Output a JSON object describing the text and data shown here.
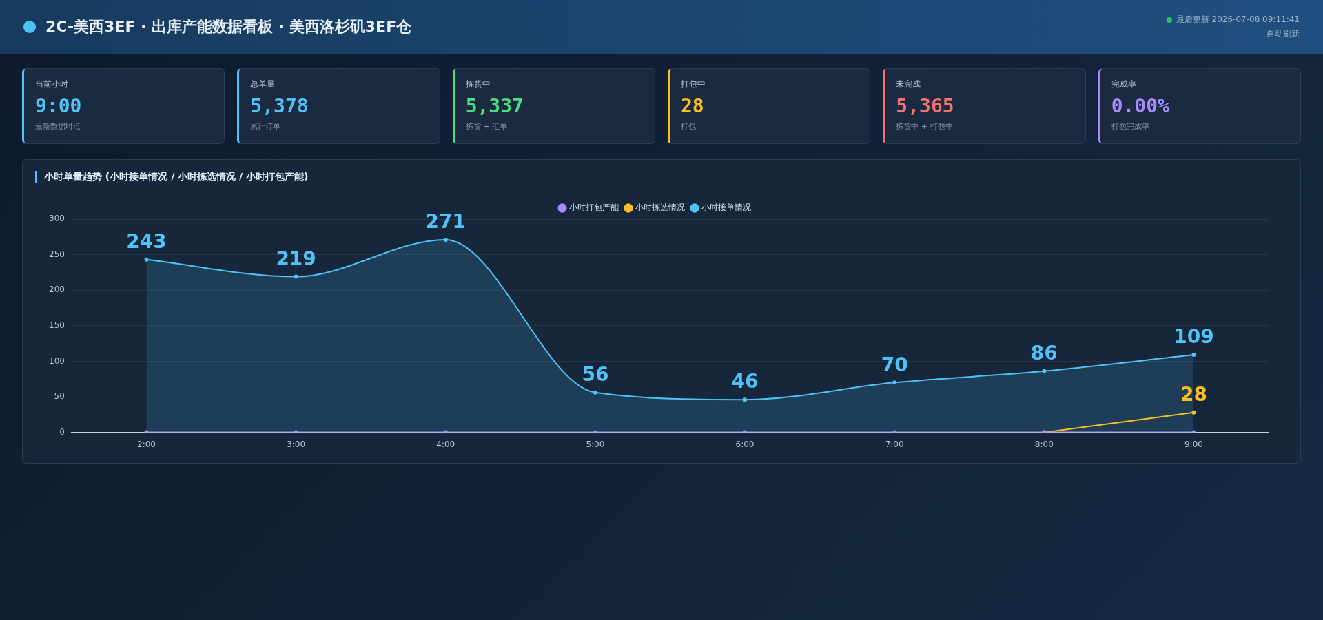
{
  "chart_data": [
    {
      "type": "other",
      "title": "2C-美西3EF · 出库产能数据看板 · 美西洛杉矶3EF仓",
      "annotations": [
        "最后更新 2026-07-08 09:11:41",
        "自动刷新"
      ]
    },
    {
      "type": "other",
      "title": "当前小时",
      "annotations": [
        "9:00",
        "最新数据时点"
      ],
      "color": "#4fc3f7"
    },
    {
      "type": "other",
      "title": "总单量",
      "annotations": [
        "5,378",
        "累计订单"
      ],
      "color": "#4fc3f7"
    },
    {
      "type": "other",
      "title": "拣货中",
      "annotations": [
        "5,337",
        "拣货 + 汇单"
      ],
      "color": "#4ade80"
    },
    {
      "type": "other",
      "title": "打包中",
      "annotations": [
        "28",
        "打包"
      ],
      "color": "#fbbf24"
    },
    {
      "type": "other",
      "title": "未完成",
      "annotations": [
        "5,365",
        "拣货中 + 打包中"
      ],
      "color": "#f87171"
    },
    {
      "type": "other",
      "title": "完成率",
      "annotations": [
        "0.00%",
        "打包完成率"
      ],
      "color": "#a78bfa"
    },
    {
      "type": "line",
      "title": "小时单量趋势 (小时接单情况 / 小时拣选情况 / 小时打包产能)",
      "categories": [
        "2:00",
        "3:00",
        "4:00",
        "5:00",
        "6:00",
        "7:00",
        "8:00",
        "9:00"
      ],
      "series": [
        {
          "name": "小时接单情况",
          "type": "area",
          "color": "#4fc3f7",
          "values": [
            243,
            219,
            271,
            56,
            46,
            70,
            86,
            109
          ],
          "value_labels": [
            "243",
            "219",
            "271",
            "56",
            "46",
            "70",
            "86",
            "109"
          ]
        },
        {
          "name": "小时拣选情况",
          "type": "line",
          "color": "#fbbf24",
          "values": [
            null,
            null,
            null,
            null,
            null,
            null,
            0,
            28
          ],
          "value_labels": [
            null,
            null,
            null,
            null,
            null,
            null,
            null,
            "28"
          ]
        },
        {
          "name": "小时打包产能",
          "type": "line",
          "color": "#a78bfa",
          "values": [
            0,
            0,
            0,
            0,
            0,
            0,
            0,
            0
          ]
        }
      ],
      "ylim": [
        0,
        300
      ],
      "yticks": [
        0,
        50,
        100,
        150,
        200,
        250,
        300
      ],
      "grid": "y",
      "legend": "top",
      "marker": "circle"
    }
  ]
}
